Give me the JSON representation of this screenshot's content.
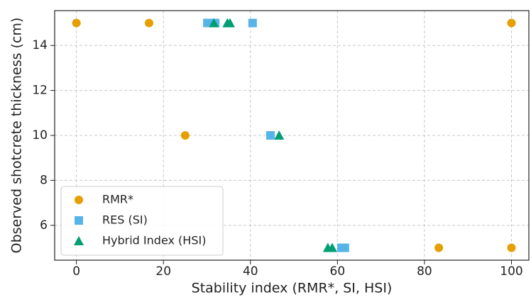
{
  "chart_data": {
    "type": "scatter",
    "xlabel": "Stability index (RMR*, SI, HSI)",
    "ylabel": "Observed shotcrete thickness (cm)",
    "xlim": [
      -5,
      104
    ],
    "ylim": [
      4.45,
      15.55
    ],
    "xticks": [
      0,
      20,
      40,
      60,
      80,
      100
    ],
    "yticks": [
      6,
      8,
      10,
      12,
      14
    ],
    "grid": true,
    "legend": "lower left",
    "series": [
      {
        "name": "RMR*",
        "color": "#E69F00",
        "marker": "circle",
        "x": [
          0,
          16.7,
          25,
          83.3,
          100,
          100
        ],
        "values": [
          15,
          15,
          10,
          5,
          5,
          15
        ]
      },
      {
        "name": "RES (SI)",
        "color": "#56B4E9",
        "marker": "square",
        "x": [
          30.1,
          31.9,
          40.5,
          44.6,
          60.9,
          61.7
        ],
        "values": [
          15,
          15,
          15,
          10,
          5,
          5
        ]
      },
      {
        "name": "Hybrid Index (HSI)",
        "color": "#009E73",
        "marker": "triangle",
        "x": [
          31.6,
          34.7,
          35.3,
          46.6,
          57.8,
          58.8
        ],
        "values": [
          15,
          15,
          15,
          10,
          5,
          5
        ]
      }
    ]
  }
}
